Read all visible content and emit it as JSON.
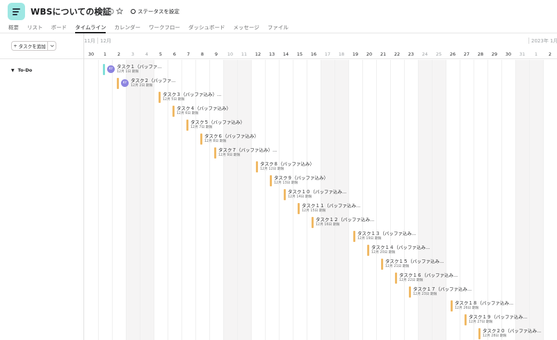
{
  "project": {
    "title": "WBSについての検証",
    "status_label": "ステータスを設定"
  },
  "tabs": [
    {
      "label": "概要",
      "active": false
    },
    {
      "label": "リスト",
      "active": false
    },
    {
      "label": "ボード",
      "active": false
    },
    {
      "label": "タイムライン",
      "active": true
    },
    {
      "label": "カレンダー",
      "active": false
    },
    {
      "label": "ワークフロー",
      "active": false
    },
    {
      "label": "ダッシュボード",
      "active": false
    },
    {
      "label": "メッセージ",
      "active": false
    },
    {
      "label": "ファイル",
      "active": false
    }
  ],
  "toolbar": {
    "add_task_label": "タスクを追加"
  },
  "timeline": {
    "months": [
      "11月",
      "12月",
      "2023年 1月"
    ],
    "dates": [
      "30",
      "1",
      "2",
      "3",
      "4",
      "5",
      "6",
      "7",
      "8",
      "9",
      "10",
      "11",
      "12",
      "13",
      "14",
      "15",
      "16",
      "17",
      "18",
      "19",
      "20",
      "21",
      "22",
      "23",
      "24",
      "25",
      "26",
      "27",
      "28",
      "29",
      "30",
      "31",
      "1",
      "2"
    ],
    "weekend_indices": [
      3,
      4,
      10,
      11,
      17,
      18,
      24,
      25,
      31,
      32
    ]
  },
  "section": {
    "label": "To-Do"
  },
  "tasks": [
    {
      "name": "タスク１（バッファ...",
      "date": "12月 1日 期限",
      "col": 1,
      "color": "teal",
      "assignee": "KY"
    },
    {
      "name": "タスク２（バッファ...",
      "date": "12月 2日 期限",
      "col": 2,
      "color": "orange",
      "assignee": "KY"
    },
    {
      "name": "タスク３（バッファ込み）...",
      "date": "12月 5日 期限",
      "col": 5,
      "color": "orange",
      "assignee": ""
    },
    {
      "name": "タスク４（バッファ込み）",
      "date": "12月 6日 期限",
      "col": 6,
      "color": "orange",
      "assignee": ""
    },
    {
      "name": "タスク５（バッファ込み）",
      "date": "12月 7日 期限",
      "col": 7,
      "color": "orange",
      "assignee": ""
    },
    {
      "name": "タスク６（バッファ込み）",
      "date": "12月 8日 期限",
      "col": 8,
      "color": "orange",
      "assignee": ""
    },
    {
      "name": "タスク７（バッファ込み）...",
      "date": "12月 9日 期限",
      "col": 9,
      "color": "orange",
      "assignee": ""
    },
    {
      "name": "タスク８（バッファ込み）",
      "date": "12月 12日 期限",
      "col": 12,
      "color": "orange",
      "assignee": ""
    },
    {
      "name": "タスク９（バッファ込み）",
      "date": "12月 13日 期限",
      "col": 13,
      "color": "orange",
      "assignee": ""
    },
    {
      "name": "タスク１０（バッファ込み...",
      "date": "12月 14日 期限",
      "col": 14,
      "color": "orange",
      "assignee": ""
    },
    {
      "name": "タスク１１（バッファ込み...",
      "date": "12月 15日 期限",
      "col": 15,
      "color": "orange",
      "assignee": ""
    },
    {
      "name": "タスク１２（バッファ込み...",
      "date": "12月 16日 期限",
      "col": 16,
      "color": "orange",
      "assignee": ""
    },
    {
      "name": "タスク１３（バッファ込み...",
      "date": "12月 19日 期限",
      "col": 19,
      "color": "orange",
      "assignee": ""
    },
    {
      "name": "タスク１４（バッファ込み...",
      "date": "12月 20日 期限",
      "col": 20,
      "color": "orange",
      "assignee": ""
    },
    {
      "name": "タスク１５（バッファ込み...",
      "date": "12月 21日 期限",
      "col": 21,
      "color": "orange",
      "assignee": ""
    },
    {
      "name": "タスク１６（バッファ込み...",
      "date": "12月 22日 期限",
      "col": 22,
      "color": "orange",
      "assignee": ""
    },
    {
      "name": "タスク１７（バッファ込み...",
      "date": "12月 23日 期限",
      "col": 23,
      "color": "orange",
      "assignee": ""
    },
    {
      "name": "タスク１８（バッファ込み...",
      "date": "12月 26日 期限",
      "col": 26,
      "color": "orange",
      "assignee": ""
    },
    {
      "name": "タスク１９（バッファ込み...",
      "date": "12月 27日 期限",
      "col": 27,
      "color": "orange",
      "assignee": ""
    },
    {
      "name": "タスク２０（バッファ込み...",
      "date": "12月 28日 期限",
      "col": 28,
      "color": "orange",
      "assignee": ""
    }
  ]
}
